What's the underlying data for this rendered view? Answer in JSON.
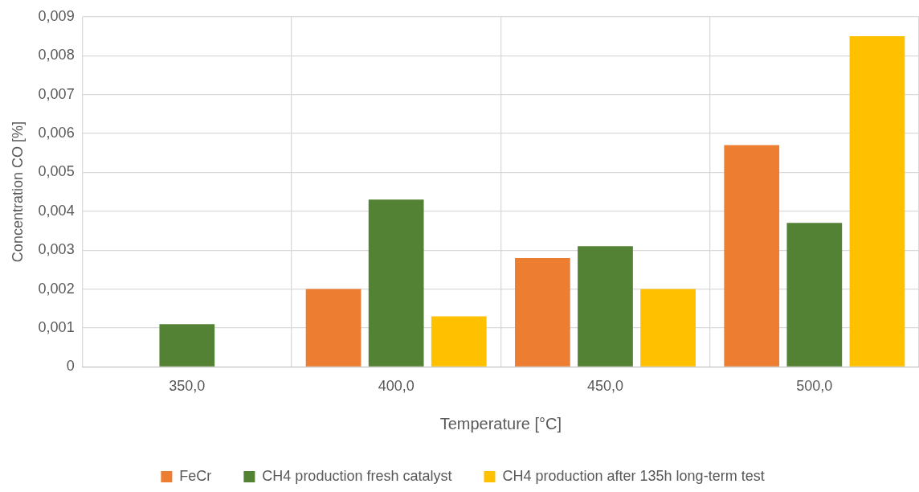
{
  "chart_data": {
    "type": "bar",
    "xlabel": "Temperature [°C]",
    "ylabel": "Concentration CO [%]",
    "categories": [
      "350,0",
      "400,0",
      "450,0",
      "500,0"
    ],
    "series": [
      {
        "name": "FeCr",
        "color": "#ed7d31",
        "values": [
          null,
          0.002,
          0.0028,
          0.0057
        ]
      },
      {
        "name": "CH4 production fresh catalyst",
        "color": "#548235",
        "values": [
          0.0011,
          0.0043,
          0.0031,
          0.0037
        ]
      },
      {
        "name": "CH4 production after 135h long-term test",
        "color": "#ffc000",
        "values": [
          null,
          0.0013,
          0.002,
          0.0085
        ]
      }
    ],
    "ylim": [
      0,
      0.009
    ],
    "yticks": [
      {
        "value": 0,
        "label": "0"
      },
      {
        "value": 0.001,
        "label": "0,001"
      },
      {
        "value": 0.002,
        "label": "0,002"
      },
      {
        "value": 0.003,
        "label": "0,003"
      },
      {
        "value": 0.004,
        "label": "0,004"
      },
      {
        "value": 0.005,
        "label": "0,005"
      },
      {
        "value": 0.006,
        "label": "0,006"
      },
      {
        "value": 0.007,
        "label": "0,007"
      },
      {
        "value": 0.008,
        "label": "0,008"
      },
      {
        "value": 0.009,
        "label": "0,009"
      }
    ],
    "grid": true,
    "legend": "bottom"
  }
}
